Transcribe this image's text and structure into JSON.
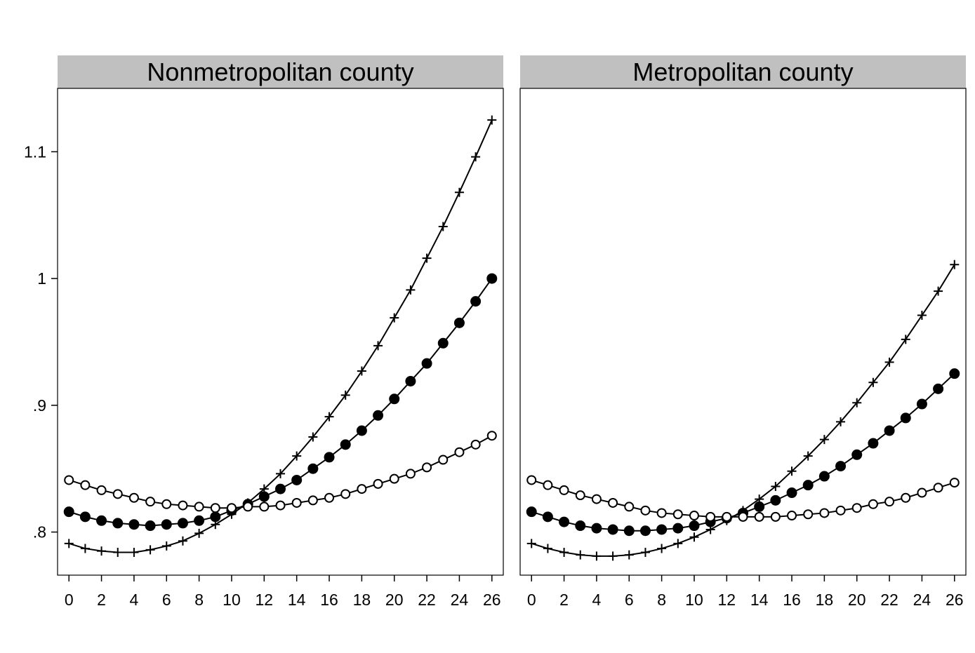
{
  "chart_data": {
    "type": "line",
    "ylim": [
      0.766,
      1.15
    ],
    "xlim": [
      -0.7,
      26.7
    ],
    "y_ticks": [
      0.8,
      0.9,
      1.0,
      1.1
    ],
    "y_tick_labels": [
      ".8",
      ".9",
      "1",
      "1.1"
    ],
    "x_ticks": [
      0,
      2,
      4,
      6,
      8,
      10,
      12,
      14,
      16,
      18,
      20,
      22,
      24,
      26
    ],
    "x_tick_labels": [
      "0",
      "2",
      "4",
      "6",
      "8",
      "10",
      "12",
      "14",
      "16",
      "18",
      "20",
      "22",
      "24",
      "26"
    ],
    "x": [
      0,
      1,
      2,
      3,
      4,
      5,
      6,
      7,
      8,
      9,
      10,
      11,
      12,
      13,
      14,
      15,
      16,
      17,
      18,
      19,
      20,
      21,
      22,
      23,
      24,
      25,
      26
    ],
    "grid": false,
    "legend": "none",
    "panels": [
      {
        "title": "Nonmetropolitan county",
        "series": [
          {
            "marker": "plus",
            "values": [
              0.791,
              0.787,
              0.785,
              0.784,
              0.784,
              0.786,
              0.789,
              0.793,
              0.799,
              0.806,
              0.814,
              0.823,
              0.834,
              0.846,
              0.86,
              0.875,
              0.891,
              0.908,
              0.927,
              0.947,
              0.969,
              0.991,
              1.016,
              1.041,
              1.068,
              1.096,
              1.125
            ]
          },
          {
            "marker": "filled-circle",
            "values": [
              0.816,
              0.812,
              0.809,
              0.807,
              0.806,
              0.805,
              0.806,
              0.807,
              0.809,
              0.812,
              0.817,
              0.822,
              0.828,
              0.834,
              0.841,
              0.85,
              0.859,
              0.869,
              0.88,
              0.892,
              0.905,
              0.919,
              0.933,
              0.949,
              0.965,
              0.982,
              1.0
            ]
          },
          {
            "marker": "hollow-circle",
            "values": [
              0.841,
              0.837,
              0.833,
              0.83,
              0.827,
              0.824,
              0.822,
              0.821,
              0.82,
              0.819,
              0.819,
              0.82,
              0.82,
              0.821,
              0.823,
              0.825,
              0.827,
              0.83,
              0.834,
              0.838,
              0.842,
              0.846,
              0.851,
              0.857,
              0.863,
              0.869,
              0.876
            ]
          }
        ]
      },
      {
        "title": "Metropolitan county",
        "series": [
          {
            "marker": "plus",
            "values": [
              0.791,
              0.787,
              0.784,
              0.782,
              0.781,
              0.781,
              0.782,
              0.784,
              0.787,
              0.791,
              0.796,
              0.802,
              0.809,
              0.817,
              0.826,
              0.836,
              0.848,
              0.86,
              0.873,
              0.887,
              0.902,
              0.918,
              0.934,
              0.952,
              0.971,
              0.99,
              1.011
            ]
          },
          {
            "marker": "filled-circle",
            "values": [
              0.816,
              0.812,
              0.808,
              0.805,
              0.803,
              0.802,
              0.801,
              0.801,
              0.802,
              0.803,
              0.805,
              0.808,
              0.811,
              0.815,
              0.82,
              0.825,
              0.831,
              0.837,
              0.844,
              0.852,
              0.861,
              0.87,
              0.88,
              0.89,
              0.901,
              0.913,
              0.925
            ]
          },
          {
            "marker": "hollow-circle",
            "values": [
              0.841,
              0.837,
              0.833,
              0.829,
              0.826,
              0.823,
              0.82,
              0.817,
              0.815,
              0.814,
              0.813,
              0.812,
              0.812,
              0.812,
              0.812,
              0.812,
              0.813,
              0.814,
              0.815,
              0.817,
              0.819,
              0.822,
              0.824,
              0.827,
              0.831,
              0.835,
              0.839
            ]
          }
        ]
      }
    ]
  }
}
